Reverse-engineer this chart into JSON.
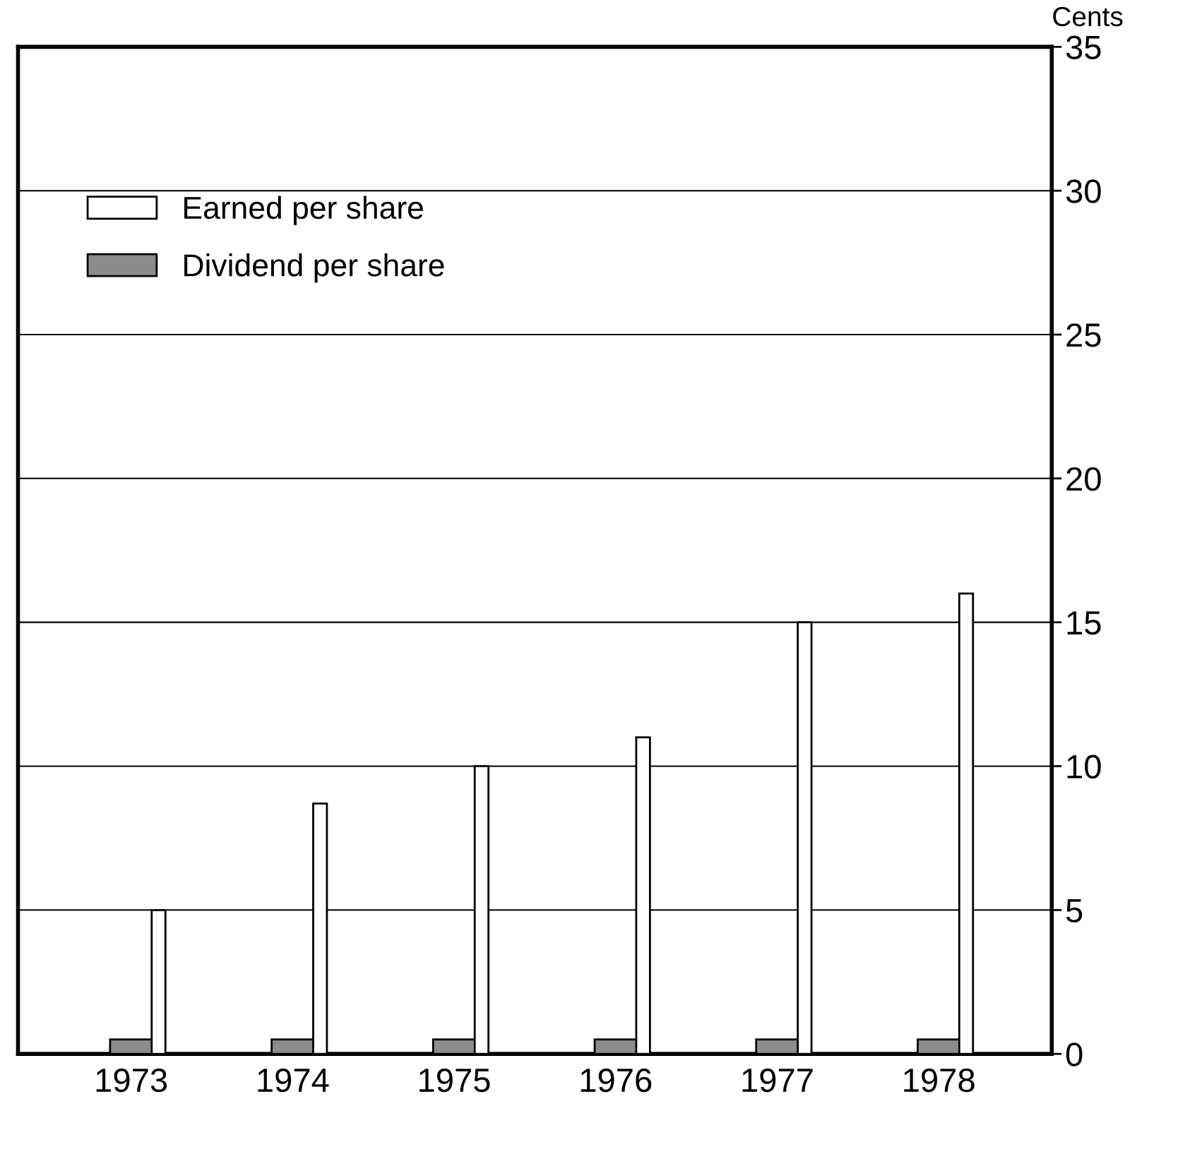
{
  "chart_data": {
    "type": "bar",
    "ylabel": "Cents",
    "categories": [
      "1973",
      "1974",
      "1975",
      "1976",
      "1977",
      "1978"
    ],
    "series": [
      {
        "name": "Dividend per share",
        "color": "#8c8c8c",
        "values": [
          0.5,
          0.5,
          0.5,
          0.5,
          0.5,
          0.5
        ]
      },
      {
        "name": "Earned per share",
        "color": "#ffffff",
        "values": [
          5,
          8.7,
          10,
          11,
          15,
          16
        ]
      }
    ],
    "ylim": [
      0,
      35
    ],
    "yticks": [
      0,
      5,
      10,
      15,
      20,
      25,
      30,
      35
    ],
    "grid": "y",
    "legend": "top left"
  }
}
